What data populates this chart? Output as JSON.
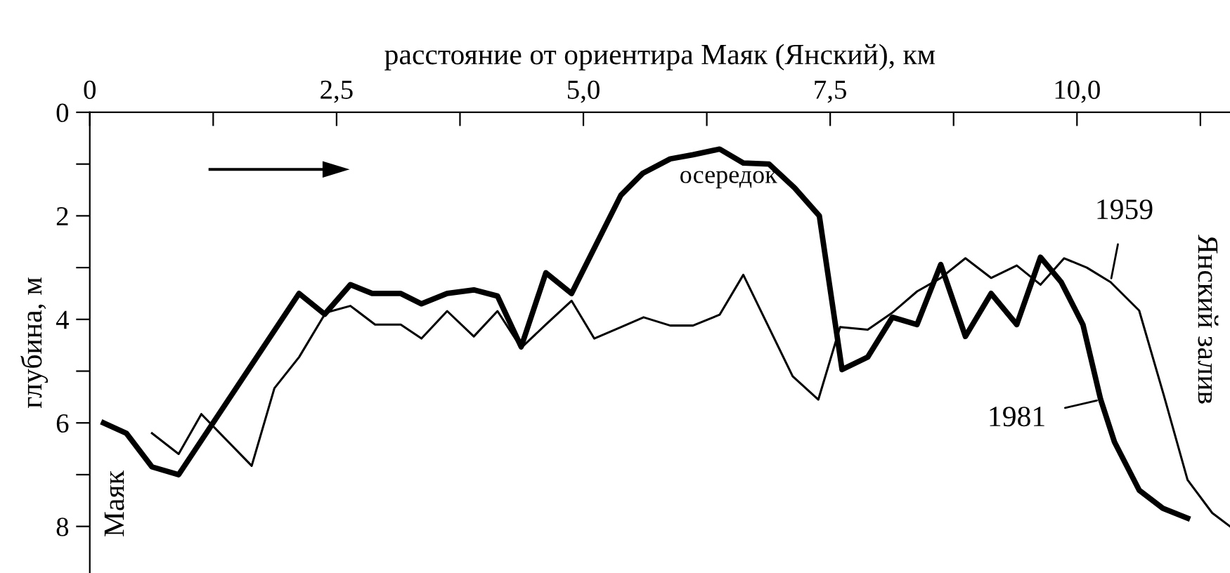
{
  "chart_data": {
    "type": "line",
    "xlabel": "расстояние от ориентира Маяк (Янский), км",
    "ylabel": "глубина, м",
    "xlim": [
      0,
      11.55
    ],
    "ylim": [
      8.9,
      0
    ],
    "xticks": [
      0,
      {
        "value": 1.25,
        "label": null
      },
      {
        "value": 2.5,
        "label": "2,5"
      },
      {
        "value": 3.75,
        "label": null
      },
      {
        "value": 5.0,
        "label": "5,0"
      },
      {
        "value": 6.25,
        "label": null
      },
      {
        "value": 7.5,
        "label": "7,5"
      },
      {
        "value": 8.75,
        "label": null
      },
      {
        "value": 10.0,
        "label": "10,0"
      },
      {
        "value": 11.25,
        "label": null
      }
    ],
    "yticks": [
      0,
      {
        "value": 1,
        "label": null
      },
      2,
      {
        "value": 3,
        "label": null
      },
      4,
      {
        "value": 5,
        "label": null
      },
      6,
      {
        "value": 7,
        "label": null
      },
      8
    ],
    "grid": false,
    "marker": "none",
    "line_style": "solid",
    "annotations": [
      "осередок",
      "Маяк",
      "Янский залив"
    ],
    "series": [
      {
        "name": "1959",
        "color": "#000000",
        "x": [
          0.63,
          0.9,
          1.13,
          1.64,
          1.87,
          2.12,
          2.39,
          2.64,
          2.89,
          3.15,
          3.36,
          3.62,
          3.89,
          4.13,
          4.37,
          4.62,
          4.88,
          5.11,
          5.38,
          5.61,
          5.88,
          6.11,
          6.38,
          6.62,
          7.12,
          7.38,
          7.6,
          7.88,
          8.13,
          8.38,
          8.62,
          8.87,
          9.13,
          9.39,
          9.63,
          9.87,
          10.1,
          10.34,
          10.63,
          10.88,
          11.12,
          11.37,
          11.55
        ],
        "values": [
          6.2,
          6.6,
          5.83,
          6.83,
          5.33,
          4.73,
          3.87,
          3.74,
          4.1,
          4.1,
          4.37,
          3.84,
          4.33,
          3.84,
          4.55,
          4.1,
          3.64,
          4.37,
          4.15,
          3.96,
          4.12,
          4.12,
          3.91,
          3.14,
          5.1,
          5.55,
          4.15,
          4.2,
          3.87,
          3.46,
          3.2,
          2.82,
          3.2,
          2.96,
          3.33,
          2.82,
          3.0,
          3.28,
          3.83,
          5.47,
          7.1,
          7.74,
          8.0
        ]
      },
      {
        "name": "1981",
        "color": "#000000",
        "x": [
          0.14,
          0.37,
          0.63,
          0.9,
          2.12,
          2.38,
          2.64,
          2.86,
          3.15,
          3.36,
          3.62,
          3.89,
          4.13,
          4.37,
          4.62,
          4.88,
          5.38,
          5.6,
          5.88,
          6.11,
          6.38,
          6.62,
          6.88,
          7.14,
          7.39,
          7.62,
          7.88,
          8.13,
          8.38,
          8.62,
          8.87,
          9.13,
          9.39,
          9.63,
          9.84,
          10.06,
          10.24,
          10.38,
          10.63,
          10.87,
          11.12
        ],
        "values": [
          6.0,
          6.2,
          6.85,
          7.0,
          3.5,
          3.9,
          3.33,
          3.5,
          3.5,
          3.7,
          3.5,
          3.43,
          3.55,
          4.53,
          3.1,
          3.5,
          1.6,
          1.18,
          0.9,
          0.82,
          0.71,
          0.98,
          1.0,
          1.46,
          2.0,
          4.97,
          4.73,
          3.96,
          4.1,
          2.94,
          4.33,
          3.5,
          4.1,
          2.8,
          3.28,
          4.1,
          5.55,
          6.37,
          7.3,
          7.65,
          7.84
        ]
      }
    ]
  }
}
